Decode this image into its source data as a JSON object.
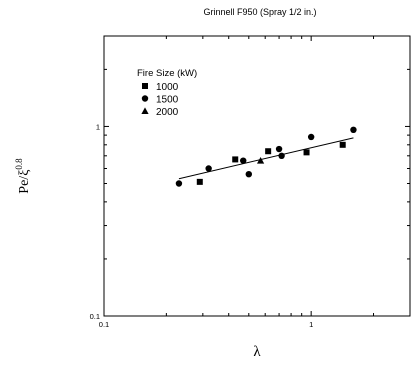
{
  "chart_data": {
    "type": "scatter",
    "title": "Grinnell F950 (Spray 1/2 in.)",
    "xlabel": "λ",
    "ylabel": {
      "base": "Pe/ξ",
      "exponent": "0.8"
    },
    "x_scale": "log",
    "y_scale": "log",
    "xlim": [
      0.1,
      3
    ],
    "ylim": [
      0.1,
      3
    ],
    "x_ticks": [
      {
        "value": 0.1,
        "label": "0.1"
      },
      {
        "value": 1,
        "label": "1"
      }
    ],
    "y_ticks": [
      {
        "value": 0.1,
        "label": "0.1"
      },
      {
        "value": 1,
        "label": "1"
      }
    ],
    "grid": false,
    "legend": {
      "title": "Fire Size (kW)",
      "position": "top-left"
    },
    "series": [
      {
        "name": "1000",
        "marker": "square",
        "x": [
          0.29,
          0.43,
          0.62,
          0.95,
          1.42
        ],
        "y": [
          0.51,
          0.67,
          0.74,
          0.73,
          0.8
        ]
      },
      {
        "name": "1500",
        "marker": "circle",
        "x": [
          0.23,
          0.32,
          0.47,
          0.5,
          0.7,
          0.72,
          1.0,
          1.6
        ],
        "y": [
          0.5,
          0.6,
          0.66,
          0.56,
          0.76,
          0.7,
          0.88,
          0.96
        ]
      },
      {
        "name": "2000",
        "marker": "triangle",
        "x": [
          0.57
        ],
        "y": [
          0.66
        ]
      }
    ],
    "fit_line": {
      "x": [
        0.23,
        1.6
      ],
      "y": [
        0.53,
        0.87
      ]
    }
  }
}
